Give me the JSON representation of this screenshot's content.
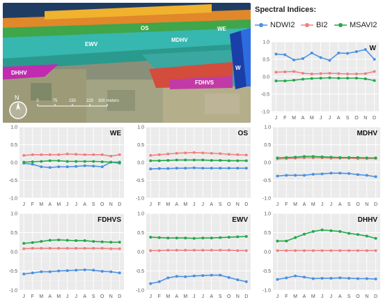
{
  "legend": {
    "title": "Spectral Indices:",
    "items": [
      {
        "name": "NDWI2",
        "color": "#4a90e2"
      },
      {
        "name": "BI2",
        "color": "#f08080"
      },
      {
        "name": "MSAVI2",
        "color": "#22a84a"
      }
    ]
  },
  "map": {
    "labels": [
      "OS",
      "WE",
      "MDHV",
      "EWV",
      "W",
      "DHHV",
      "FDHVS"
    ],
    "north_label": "N",
    "scale_ticks": [
      "0",
      "75",
      "150",
      "225",
      "300 meters"
    ]
  },
  "chart_data": [
    {
      "type": "line",
      "title": "W",
      "x": [
        "J",
        "F",
        "M",
        "A",
        "M",
        "J",
        "J",
        "A",
        "S",
        "O",
        "N",
        "D"
      ],
      "ylim": [
        -1.0,
        1.0
      ],
      "yticks": [
        "1.0",
        "0.5",
        "0.0",
        "-0.5",
        "-1.0"
      ],
      "series": [
        {
          "name": "NDWI2",
          "values": [
            0.65,
            0.63,
            0.48,
            0.52,
            0.68,
            0.55,
            0.47,
            0.68,
            0.67,
            0.72,
            0.78,
            0.5
          ]
        },
        {
          "name": "BI2",
          "values": [
            0.13,
            0.14,
            0.15,
            0.1,
            0.08,
            0.09,
            0.1,
            0.09,
            0.08,
            0.08,
            0.09,
            0.15
          ]
        },
        {
          "name": "MSAVI2",
          "values": [
            -0.12,
            -0.12,
            -0.1,
            -0.07,
            -0.05,
            -0.04,
            -0.03,
            -0.04,
            -0.04,
            -0.04,
            -0.06,
            -0.11
          ]
        }
      ]
    },
    {
      "type": "line",
      "title": "WE",
      "x": [
        "J",
        "F",
        "M",
        "A",
        "M",
        "J",
        "J",
        "A",
        "S",
        "O",
        "N",
        "D"
      ],
      "ylim": [
        -1.0,
        1.0
      ],
      "yticks": [
        "1.0",
        "0.5",
        "0.0",
        "-0.5",
        "-1.0"
      ],
      "series": [
        {
          "name": "NDWI2",
          "values": [
            -0.02,
            -0.05,
            -0.12,
            -0.14,
            -0.12,
            -0.12,
            -0.11,
            -0.09,
            -0.1,
            -0.12,
            0.01,
            -0.02
          ]
        },
        {
          "name": "BI2",
          "values": [
            0.2,
            0.22,
            0.22,
            0.22,
            0.22,
            0.24,
            0.23,
            0.22,
            0.22,
            0.22,
            0.18,
            0.22
          ]
        },
        {
          "name": "MSAVI2",
          "values": [
            0.01,
            0.02,
            0.03,
            0.05,
            0.05,
            0.03,
            0.03,
            0.03,
            0.03,
            0.02,
            0.01,
            0.01
          ]
        }
      ]
    },
    {
      "type": "line",
      "title": "OS",
      "x": [
        "J",
        "F",
        "M",
        "A",
        "M",
        "J",
        "J",
        "A",
        "S",
        "O",
        "N",
        "D"
      ],
      "ylim": [
        -1.0,
        1.0
      ],
      "yticks": [
        "1.0",
        "0.5",
        "0.0",
        "-0.5",
        "-1.0"
      ],
      "series": [
        {
          "name": "NDWI2",
          "values": [
            -0.18,
            -0.17,
            -0.17,
            -0.16,
            -0.16,
            -0.15,
            -0.16,
            -0.16,
            -0.16,
            -0.16,
            -0.16,
            -0.16
          ]
        },
        {
          "name": "BI2",
          "values": [
            0.2,
            0.22,
            0.24,
            0.26,
            0.27,
            0.28,
            0.27,
            0.26,
            0.25,
            0.23,
            0.22,
            0.21
          ]
        },
        {
          "name": "MSAVI2",
          "values": [
            0.05,
            0.05,
            0.06,
            0.07,
            0.07,
            0.07,
            0.07,
            0.06,
            0.06,
            0.05,
            0.05,
            0.05
          ]
        }
      ]
    },
    {
      "type": "line",
      "title": "MDHV",
      "x": [
        "J",
        "F",
        "M",
        "A",
        "M",
        "J",
        "J",
        "A",
        "S",
        "O",
        "N",
        "D"
      ],
      "ylim": [
        -1.0,
        1.0
      ],
      "yticks": [
        "1.0",
        "0.5",
        "0.0",
        "-0.5",
        "-1.0"
      ],
      "series": [
        {
          "name": "NDWI2",
          "values": [
            -0.38,
            -0.36,
            -0.36,
            -0.36,
            -0.33,
            -0.32,
            -0.3,
            -0.3,
            -0.31,
            -0.34,
            -0.36,
            -0.4
          ]
        },
        {
          "name": "BI2",
          "values": [
            0.1,
            0.11,
            0.12,
            0.13,
            0.13,
            0.13,
            0.12,
            0.12,
            0.12,
            0.11,
            0.11,
            0.11
          ]
        },
        {
          "name": "MSAVI2",
          "values": [
            0.13,
            0.14,
            0.15,
            0.17,
            0.17,
            0.16,
            0.15,
            0.14,
            0.14,
            0.14,
            0.13,
            0.13
          ]
        }
      ]
    },
    {
      "type": "line",
      "title": "FDHVS",
      "x": [
        "J",
        "F",
        "M",
        "A",
        "M",
        "J",
        "J",
        "A",
        "S",
        "O",
        "N",
        "D"
      ],
      "ylim": [
        -1.0,
        1.0
      ],
      "yticks": [
        "1.0",
        "0.5",
        "0.0",
        "-0.5",
        "-1.0"
      ],
      "series": [
        {
          "name": "NDWI2",
          "values": [
            -0.58,
            -0.55,
            -0.52,
            -0.52,
            -0.5,
            -0.49,
            -0.48,
            -0.47,
            -0.48,
            -0.51,
            -0.52,
            -0.55
          ]
        },
        {
          "name": "BI2",
          "values": [
            0.08,
            0.09,
            0.09,
            0.09,
            0.09,
            0.09,
            0.09,
            0.09,
            0.09,
            0.09,
            0.08,
            0.08
          ]
        },
        {
          "name": "MSAVI2",
          "values": [
            0.22,
            0.24,
            0.27,
            0.3,
            0.31,
            0.3,
            0.29,
            0.29,
            0.27,
            0.26,
            0.25,
            0.25
          ]
        }
      ]
    },
    {
      "type": "line",
      "title": "EWV",
      "x": [
        "J",
        "F",
        "M",
        "A",
        "M",
        "J",
        "J",
        "A",
        "S",
        "O",
        "N",
        "D"
      ],
      "ylim": [
        -1.0,
        1.0
      ],
      "yticks": [
        "1.0",
        "0.5",
        "0.0",
        "-0.5",
        "-1.0"
      ],
      "series": [
        {
          "name": "NDWI2",
          "values": [
            -0.83,
            -0.78,
            -0.68,
            -0.64,
            -0.65,
            -0.63,
            -0.62,
            -0.61,
            -0.61,
            -0.67,
            -0.73,
            -0.78
          ]
        },
        {
          "name": "BI2",
          "values": [
            0.03,
            0.03,
            0.04,
            0.04,
            0.04,
            0.04,
            0.04,
            0.04,
            0.04,
            0.04,
            0.03,
            0.03
          ]
        },
        {
          "name": "MSAVI2",
          "values": [
            0.38,
            0.37,
            0.36,
            0.36,
            0.36,
            0.35,
            0.36,
            0.36,
            0.37,
            0.38,
            0.39,
            0.4
          ]
        }
      ]
    },
    {
      "type": "line",
      "title": "DHHV",
      "x": [
        "J",
        "F",
        "M",
        "A",
        "M",
        "J",
        "J",
        "A",
        "S",
        "O",
        "N",
        "D"
      ],
      "ylim": [
        -1.0,
        1.0
      ],
      "yticks": [
        "1.0",
        "0.5",
        "0.0",
        "-0.5",
        "-1.0"
      ],
      "series": [
        {
          "name": "NDWI2",
          "values": [
            -0.72,
            -0.68,
            -0.63,
            -0.66,
            -0.7,
            -0.69,
            -0.69,
            -0.68,
            -0.69,
            -0.7,
            -0.7,
            -0.71
          ]
        },
        {
          "name": "BI2",
          "values": [
            0.03,
            0.03,
            0.03,
            0.03,
            0.03,
            0.03,
            0.03,
            0.03,
            0.03,
            0.03,
            0.03,
            0.03
          ]
        },
        {
          "name": "MSAVI2",
          "values": [
            0.28,
            0.28,
            0.37,
            0.46,
            0.53,
            0.57,
            0.55,
            0.53,
            0.48,
            0.45,
            0.41,
            0.35
          ]
        }
      ]
    }
  ]
}
